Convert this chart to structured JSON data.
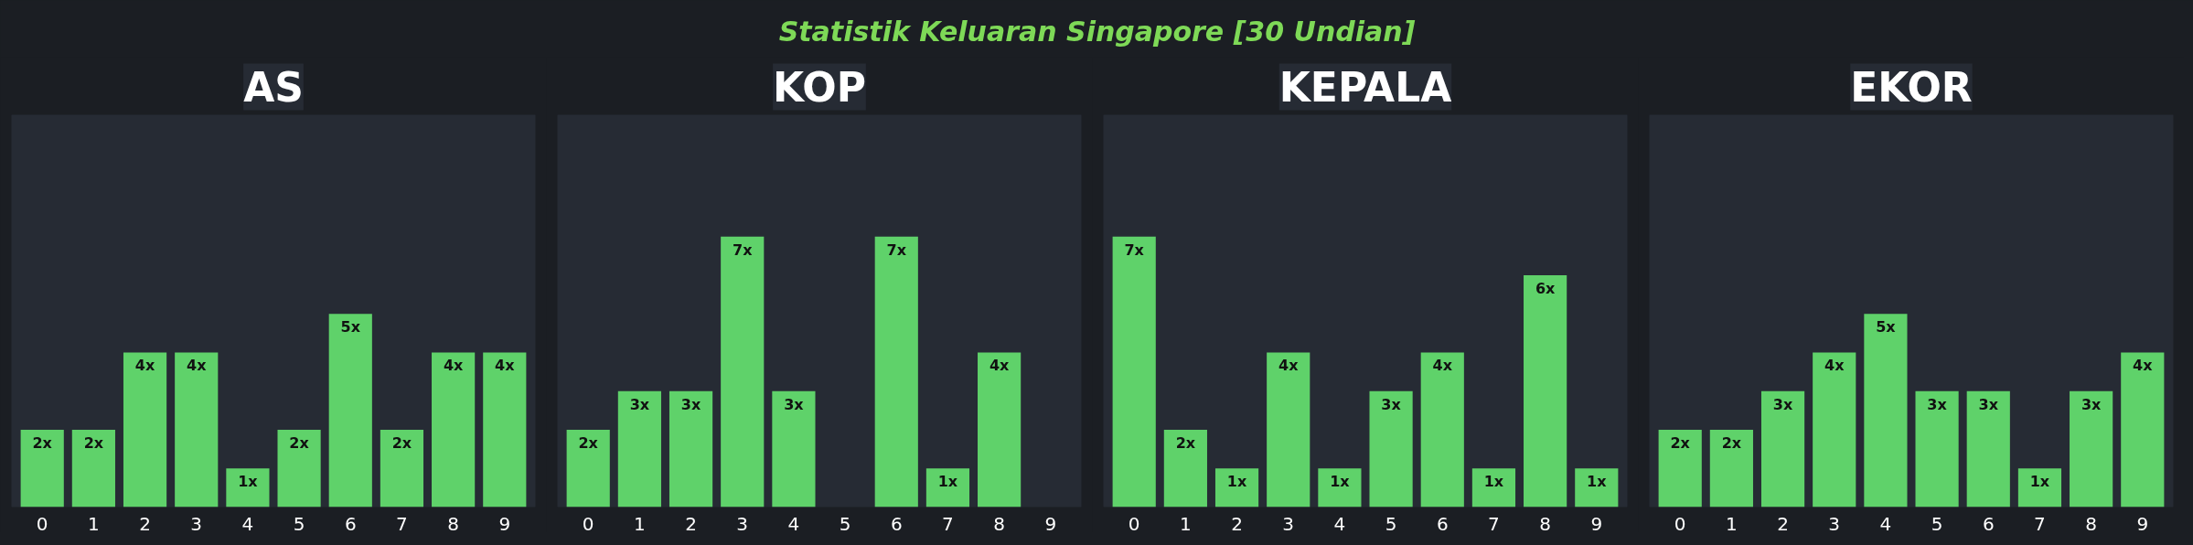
{
  "chart_data": [
    {
      "type": "other",
      "title": "Statistik Keluaran Singapore [30 Undian]"
    },
    {
      "type": "bar",
      "title": "AS",
      "categories": [
        "0",
        "1",
        "2",
        "3",
        "4",
        "5",
        "6",
        "7",
        "8",
        "9"
      ],
      "values": [
        2,
        2,
        4,
        4,
        1,
        2,
        5,
        2,
        4,
        4
      ],
      "color": "#5fd26a",
      "value_labels": [
        "2x",
        "2x",
        "4x",
        "4x",
        "1x",
        "2x",
        "5x",
        "2x",
        "4x",
        "4x"
      ],
      "grid": false
    },
    {
      "type": "bar",
      "title": "KOP",
      "categories": [
        "0",
        "1",
        "2",
        "3",
        "4",
        "5",
        "6",
        "7",
        "8",
        "9"
      ],
      "values": [
        2,
        3,
        3,
        7,
        3,
        0,
        7,
        1,
        4,
        0
      ],
      "color": "#5fd26a",
      "value_labels": [
        "2x",
        "3x",
        "3x",
        "7x",
        "3x",
        null,
        "7x",
        "1x",
        "4x",
        null
      ],
      "grid": false
    },
    {
      "type": "bar",
      "title": "KEPALA",
      "categories": [
        "0",
        "1",
        "2",
        "3",
        "4",
        "5",
        "6",
        "7",
        "8",
        "9"
      ],
      "values": [
        7,
        2,
        1,
        4,
        1,
        3,
        4,
        1,
        6,
        1
      ],
      "color": "#5fd26a",
      "value_labels": [
        "7x",
        "2x",
        "1x",
        "4x",
        "1x",
        "3x",
        "4x",
        "1x",
        "6x",
        "1x"
      ],
      "grid": false
    },
    {
      "type": "bar",
      "title": "EKOR",
      "categories": [
        "0",
        "1",
        "2",
        "3",
        "4",
        "5",
        "6",
        "7",
        "8",
        "9"
      ],
      "values": [
        2,
        2,
        3,
        4,
        5,
        3,
        3,
        1,
        3,
        4
      ],
      "color": "#5fd26a",
      "value_labels": [
        "2x",
        "2x",
        "3x",
        "4x",
        "5x",
        "3x",
        "3x",
        "1x",
        "3x",
        "4x"
      ],
      "grid": false
    }
  ]
}
